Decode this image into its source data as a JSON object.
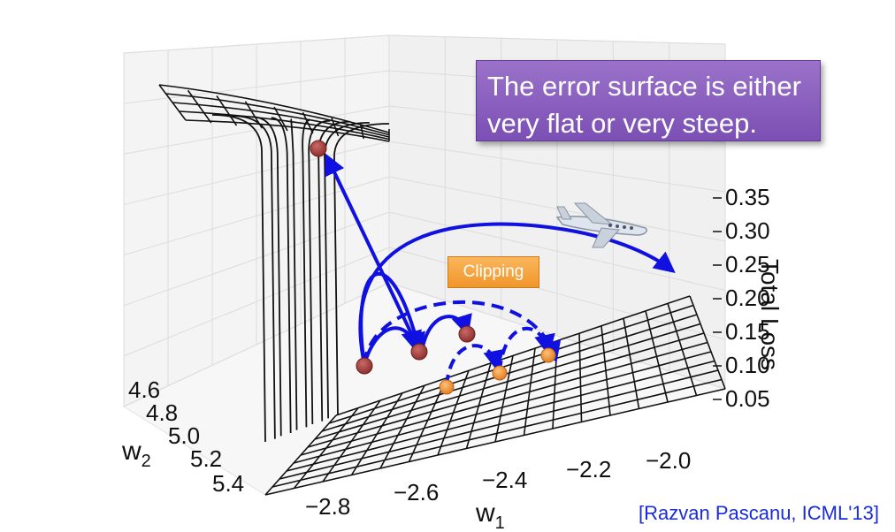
{
  "callout": {
    "line1": "The error surface is either",
    "line2": "very flat or very steep."
  },
  "clipping_label": "Clipping",
  "citation": "[Razvan Pascanu, ICML'13]",
  "colors": {
    "callout_bg": "#8a60bf",
    "clipping_bg": "#f5a640",
    "arrow": "#1010e0",
    "red_point": "#a8403f",
    "orange_point": "#f59a3b",
    "citation_text": "#1a2cd8"
  },
  "chart_data": {
    "type": "surface",
    "title": "",
    "xlabel": "w",
    "xlabel_sub": "1",
    "ylabel": "w",
    "ylabel_sub": "2",
    "zlabel": "Total Loss",
    "x_ticks": [
      "−2.8",
      "−2.6",
      "−2.4",
      "−2.2",
      "−2.0"
    ],
    "y_ticks": [
      "4.6",
      "4.8",
      "5.0",
      "5.2",
      "5.4"
    ],
    "z_ticks": [
      "0.35",
      "0.30",
      "0.25",
      "0.20",
      "0.15",
      "0.10",
      "0.05"
    ],
    "grid": true,
    "annotations": [
      "The error surface is either very flat or very steep.",
      "Clipping"
    ],
    "series": [
      {
        "marker": "red",
        "description_points": 4
      },
      {
        "marker": "orange",
        "description_points": 4
      }
    ]
  }
}
